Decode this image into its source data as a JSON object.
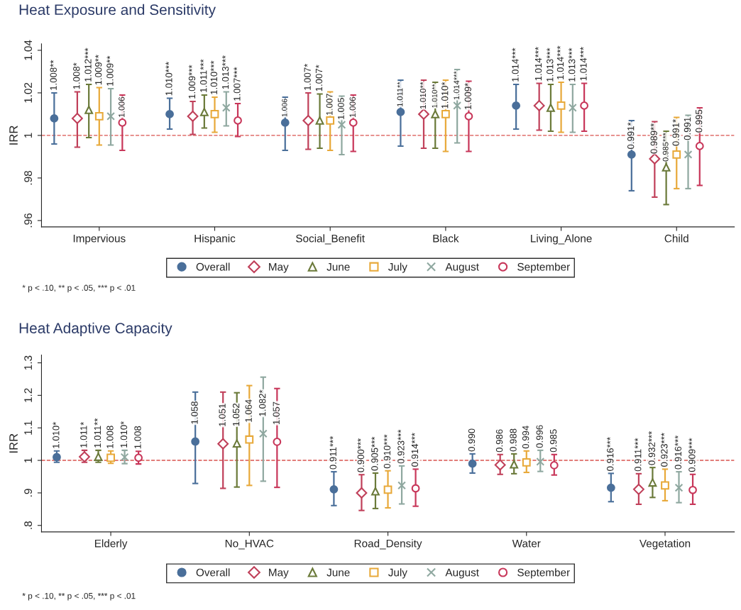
{
  "chart_data": [
    {
      "type": "scatter",
      "title": "Heat Exposure and Sensitivity",
      "ylabel": "IRR",
      "annotations": [
        "* p < .10, ** p < .05, *** p < .01"
      ],
      "categories": [
        "Impervious",
        "Hispanic",
        "Social_Benefit",
        "Black",
        "Living_Alone",
        "Child"
      ],
      "ylim": [
        0.957,
        1.043
      ],
      "yticks": [
        {
          "value": 0.96,
          "label": ".96"
        },
        {
          "value": 0.98,
          "label": ".98"
        },
        1,
        1.02,
        1.04
      ],
      "ref_lines": [
        {
          "axis": "y",
          "value": 1,
          "color": "#d9534f",
          "line_style": "dashed"
        }
      ],
      "legend": "bottom",
      "grid": false,
      "series": [
        {
          "name": "Overall",
          "marker": "circle",
          "color": "#4a6f9a",
          "values": [
            1.008,
            1.01,
            1.006,
            1.011,
            1.014,
            0.991
          ],
          "value_labels": [
            "1.008**",
            "1.010***",
            "1.006",
            "1.011**",
            "1.014***",
            "0.991*"
          ],
          "errors": [
            [
              0.996,
              1.02
            ],
            [
              1.003,
              1.0175
            ],
            [
              0.993,
              1.018
            ],
            [
              0.995,
              1.026
            ],
            [
              1.003,
              1.024
            ],
            [
              0.974,
              1.007
            ]
          ]
        },
        {
          "name": "May",
          "marker": "diamond",
          "color": "#c0405a",
          "values": [
            1.008,
            1.009,
            1.007,
            1.01,
            1.014,
            0.989
          ],
          "value_labels": [
            "1.008*",
            "1.009***",
            "1.007*",
            "1.010**",
            "1.014***",
            "0.989**"
          ],
          "errors": [
            [
              0.9945,
              1.0205
            ],
            [
              1.0005,
              1.016
            ],
            [
              0.9935,
              1.02
            ],
            [
              0.994,
              1.026
            ],
            [
              1.0025,
              1.0245
            ],
            [
              0.971,
              1.0065
            ]
          ]
        },
        {
          "name": "June",
          "marker": "triangle",
          "color": "#6b7a3a",
          "values": [
            1.012,
            1.011,
            1.007,
            1.01,
            1.013,
            0.985
          ],
          "value_labels": [
            "1.012***",
            "1.011***",
            "1.007*",
            "1.010**",
            "1.013***",
            "0.985***"
          ],
          "errors": [
            [
              0.999,
              1.024
            ],
            [
              1.0035,
              1.019
            ],
            [
              0.994,
              1.0195
            ],
            [
              0.994,
              1.025
            ],
            [
              1.002,
              1.024
            ],
            [
              0.9675,
              1.002
            ]
          ]
        },
        {
          "name": "July",
          "marker": "square",
          "color": "#e8a93a",
          "values": [
            1.009,
            1.01,
            1.007,
            1.01,
            1.014,
            0.991
          ],
          "value_labels": [
            "1.009**",
            "1.010***",
            "1.007",
            "1.010*",
            "1.014***",
            "0.991*"
          ],
          "errors": [
            [
              0.9955,
              1.0225
            ],
            [
              1.0015,
              1.018
            ],
            [
              0.993,
              1.0205
            ],
            [
              0.9925,
              1.026
            ],
            [
              1.0015,
              1.025
            ],
            [
              0.975,
              1.0085
            ]
          ]
        },
        {
          "name": "August",
          "marker": "cross",
          "color": "#8fa8a0",
          "values": [
            1.009,
            1.013,
            1.005,
            1.014,
            1.013,
            0.991
          ],
          "value_labels": [
            "1.009**",
            "1.013***",
            "1.005",
            "1.014***",
            "1.013***",
            "0.991"
          ],
          "errors": [
            [
              0.9955,
              1.022
            ],
            [
              1.0045,
              1.0205
            ],
            [
              0.991,
              1.0185
            ],
            [
              0.9965,
              1.031
            ],
            [
              1.0015,
              1.024
            ],
            [
              0.975,
              1.0095
            ]
          ]
        },
        {
          "name": "September",
          "marker": "circle",
          "color": "#c8375a",
          "values": [
            1.006,
            1.007,
            1.006,
            1.009,
            1.014,
            0.995
          ],
          "value_labels": [
            "1.006",
            "1.007***",
            "1.006",
            "1.009*",
            "1.014***",
            "0.995"
          ],
          "errors": [
            [
              0.993,
              1.019
            ],
            [
              0.9995,
              1.015
            ],
            [
              0.9925,
              1.019
            ],
            [
              0.9925,
              1.0255
            ],
            [
              1.002,
              1.0245
            ],
            [
              0.9765,
              1.013
            ]
          ]
        }
      ]
    },
    {
      "type": "scatter",
      "title": "Heat Adaptive Capacity",
      "ylabel": "IRR",
      "annotations": [
        "* p < .10, ** p < .05, *** p < .01"
      ],
      "categories": [
        "Elderly",
        "No_HVAC",
        "Road_Density",
        "Water",
        "Vegetation"
      ],
      "ylim": [
        0.78,
        1.324
      ],
      "yticks": [
        {
          "value": 0.8,
          "label": ".8"
        },
        {
          "value": 0.9,
          "label": ".9"
        },
        1,
        1.1,
        1.2,
        1.3
      ],
      "ref_lines": [
        {
          "axis": "y",
          "value": 1,
          "color": "#d9534f",
          "line_style": "dashed"
        }
      ],
      "legend": "bottom",
      "grid": false,
      "series": [
        {
          "name": "Overall",
          "marker": "circle",
          "color": "#4a6f9a",
          "values": [
            1.01,
            1.058,
            0.911,
            0.99,
            0.916
          ],
          "value_labels": [
            "1.010*",
            "1.058",
            "0.911***",
            "0.990",
            "0.916***"
          ],
          "errors": [
            [
              0.994,
              1.029
            ],
            [
              0.929,
              1.21
            ],
            [
              0.861,
              0.965
            ],
            [
              0.961,
              1.02
            ],
            [
              0.873,
              0.96
            ]
          ]
        },
        {
          "name": "May",
          "marker": "diamond",
          "color": "#c0405a",
          "values": [
            1.011,
            1.051,
            0.9,
            0.986,
            0.911
          ],
          "value_labels": [
            "1.011*",
            "1.051",
            "0.900***",
            "0.986",
            "0.911***"
          ],
          "errors": [
            [
              0.994,
              1.031
            ],
            [
              0.914,
              1.21
            ],
            [
              0.846,
              0.956
            ],
            [
              0.957,
              1.018
            ],
            [
              0.865,
              0.959
            ]
          ]
        },
        {
          "name": "June",
          "marker": "triangle",
          "color": "#6b7a3a",
          "values": [
            1.011,
            1.052,
            0.905,
            0.988,
            0.932
          ],
          "value_labels": [
            "1.011**",
            "1.052",
            "0.905***",
            "0.988",
            "0.932***"
          ],
          "errors": [
            [
              0.994,
              1.031
            ],
            [
              0.918,
              1.208
            ],
            [
              0.852,
              0.961
            ],
            [
              0.959,
              1.02
            ],
            [
              0.886,
              0.978
            ]
          ]
        },
        {
          "name": "July",
          "marker": "square",
          "color": "#e8a93a",
          "values": [
            1.008,
            1.064,
            0.91,
            0.994,
            0.923
          ],
          "value_labels": [
            "1.008",
            "1.064",
            "0.910***",
            "0.994",
            "0.923***"
          ],
          "errors": [
            [
              0.991,
              1.029
            ],
            [
              0.923,
              1.23
            ],
            [
              0.854,
              0.968
            ],
            [
              0.963,
              1.029
            ],
            [
              0.876,
              0.973
            ]
          ]
        },
        {
          "name": "August",
          "marker": "cross",
          "color": "#8fa8a0",
          "values": [
            1.01,
            1.082,
            0.923,
            0.996,
            0.916
          ],
          "value_labels": [
            "1.010*",
            "1.082*",
            "0.923***",
            "0.996",
            "0.916***"
          ],
          "errors": [
            [
              0.99,
              1.031
            ],
            [
              0.936,
              1.256
            ],
            [
              0.866,
              0.983
            ],
            [
              0.966,
              1.031
            ],
            [
              0.87,
              0.965
            ]
          ]
        },
        {
          "name": "September",
          "marker": "circle",
          "color": "#c8375a",
          "values": [
            1.008,
            1.057,
            0.914,
            0.985,
            0.909
          ],
          "value_labels": [
            "1.008",
            "1.057",
            "0.914***",
            "0.985",
            "0.909***"
          ],
          "errors": [
            [
              0.989,
              1.028
            ],
            [
              0.917,
              1.221
            ],
            [
              0.859,
              0.973
            ],
            [
              0.955,
              1.018
            ],
            [
              0.865,
              0.957
            ]
          ]
        }
      ]
    }
  ]
}
